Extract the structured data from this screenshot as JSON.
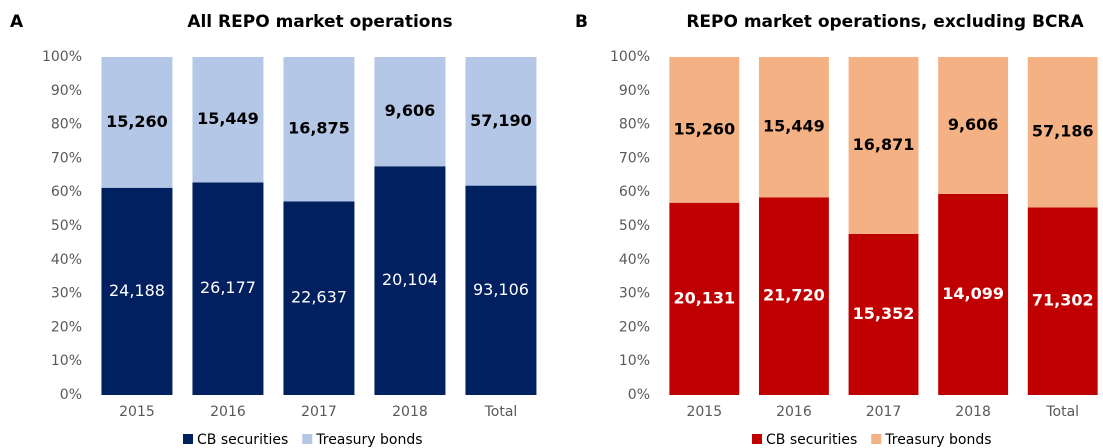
{
  "chart_data": [
    {
      "type": "bar",
      "stacked_percent": true,
      "panel": "A",
      "title": "All REPO market operations",
      "categories": [
        "2015",
        "2016",
        "2017",
        "2018",
        "Total"
      ],
      "series": [
        {
          "name": "CB securities",
          "color": "#002060",
          "label_color": "#ffffff",
          "values": [
            24188,
            26177,
            22637,
            20104,
            93106
          ],
          "value_labels": [
            "24,188",
            "26,177",
            "22,637",
            "20,104",
            "93,106"
          ]
        },
        {
          "name": "Treasury bonds",
          "color": "#b4c7e7",
          "label_color": "#000000",
          "values": [
            15260,
            15449,
            16875,
            9606,
            57190
          ],
          "value_labels": [
            "15,260",
            "15,449",
            "16,875",
            "9,606",
            "57,190"
          ]
        }
      ],
      "ylim": [
        0,
        100
      ],
      "yticks": [
        {
          "value": 0,
          "label": "0%"
        },
        {
          "value": 10,
          "label": "10%"
        },
        {
          "value": 20,
          "label": "20%"
        },
        {
          "value": 30,
          "label": "30%"
        },
        {
          "value": 40,
          "label": "40%"
        },
        {
          "value": 50,
          "label": "50%"
        },
        {
          "value": 60,
          "label": "60%"
        },
        {
          "value": 70,
          "label": "70%"
        },
        {
          "value": 80,
          "label": "80%"
        },
        {
          "value": 90,
          "label": "90%"
        },
        {
          "value": 100,
          "label": "100%"
        }
      ]
    },
    {
      "type": "bar",
      "stacked_percent": true,
      "panel": "B",
      "title": "REPO market operations, excluding BCRA",
      "categories": [
        "2015",
        "2016",
        "2017",
        "2018",
        "Total"
      ],
      "series": [
        {
          "name": "CB securities",
          "color": "#c00000",
          "label_color": "#ffffff",
          "values": [
            20131,
            21720,
            15352,
            14099,
            71302
          ],
          "value_labels": [
            "20,131",
            "21,720",
            "15,352",
            "14,099",
            "71,302"
          ]
        },
        {
          "name": "Treasury bonds",
          "color": "#f4b183",
          "label_color": "#000000",
          "values": [
            15260,
            15449,
            16871,
            9606,
            57186
          ],
          "value_labels": [
            "15,260",
            "15,449",
            "16,871",
            "9,606",
            "57,186"
          ]
        }
      ],
      "ylim": [
        0,
        100
      ],
      "yticks": [
        {
          "value": 0,
          "label": "0%"
        },
        {
          "value": 10,
          "label": "10%"
        },
        {
          "value": 20,
          "label": "20%"
        },
        {
          "value": 30,
          "label": "30%"
        },
        {
          "value": 40,
          "label": "40%"
        },
        {
          "value": 50,
          "label": "50%"
        },
        {
          "value": 60,
          "label": "60%"
        },
        {
          "value": 70,
          "label": "70%"
        },
        {
          "value": 80,
          "label": "80%"
        },
        {
          "value": 90,
          "label": "90%"
        },
        {
          "value": 100,
          "label": "100%"
        }
      ]
    }
  ]
}
